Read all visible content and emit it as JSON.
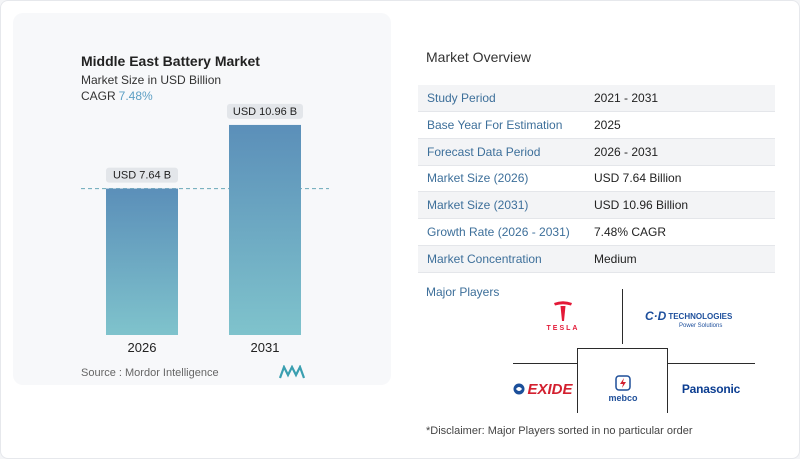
{
  "chart_data": {
    "type": "bar",
    "title": "Middle East Battery Market",
    "subtitle": "Market Size in USD Billion",
    "cagr_label": "CAGR",
    "cagr_value": "7.48%",
    "categories": [
      "2026",
      "2031"
    ],
    "values": [
      7.64,
      10.96
    ],
    "data_labels": [
      "USD 7.64 B",
      "USD 10.96 B"
    ],
    "ylim": [
      0,
      12
    ],
    "colors": {
      "bar_top": "#5b8fb9",
      "bar_bottom": "#7fc3cc",
      "reference_line": "#6aa8b8"
    }
  },
  "source": "Source : Mordor Intelligence",
  "overview": {
    "title": "Market Overview",
    "rows": [
      {
        "label": "Study Period",
        "value": "2021 - 2031"
      },
      {
        "label": "Base Year For Estimation",
        "value": "2025"
      },
      {
        "label": "Forecast Data Period",
        "value": "2026 - 2031"
      },
      {
        "label": "Market Size (2026)",
        "value": "USD 7.64 Billion"
      },
      {
        "label": "Market Size (2031)",
        "value": "USD 10.96 Billion"
      },
      {
        "label": "Growth Rate (2026 - 2031)",
        "value": "7.48% CAGR"
      },
      {
        "label": "Market Concentration",
        "value": "Medium"
      }
    ],
    "label_color": "#3d6f9a"
  },
  "players": {
    "title": "Major Players",
    "logos": [
      {
        "name": "tesla-logo",
        "text": "TESLA"
      },
      {
        "name": "cd-technologies-logo",
        "text": "TECHNOLOGIES",
        "tagline": "Power Solutions"
      },
      {
        "name": "exide-logo",
        "text": "EXIDE"
      },
      {
        "name": "mebco-logo",
        "text": "mebco"
      },
      {
        "name": "panasonic-logo",
        "text": "Panasonic"
      }
    ]
  },
  "disclaimer": "*Disclaimer: Major Players sorted in no particular order"
}
